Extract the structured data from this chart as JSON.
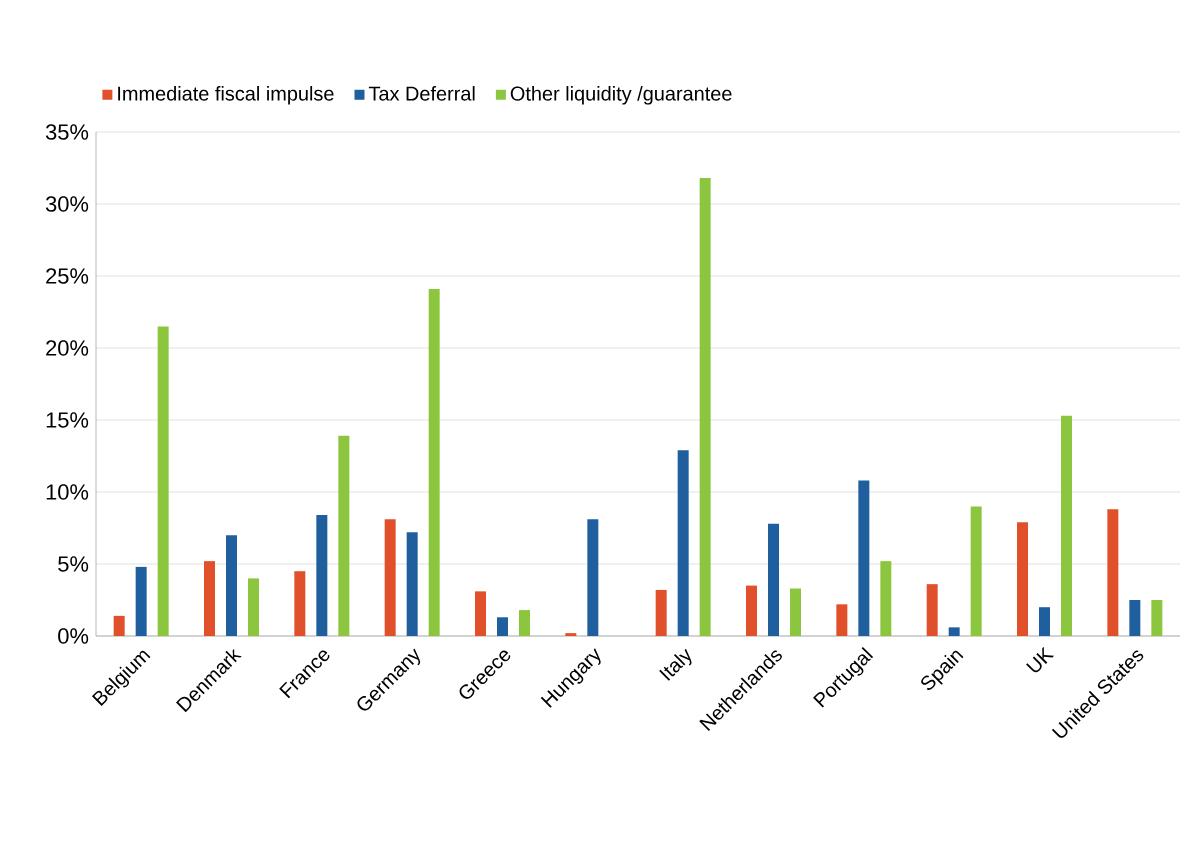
{
  "chart_data": {
    "type": "bar",
    "categories": [
      "Belgium",
      "Denmark",
      "France",
      "Germany",
      "Greece",
      "Hungary",
      "Italy",
      "Netherlands",
      "Portugal",
      "Spain",
      "UK",
      "United States"
    ],
    "series": [
      {
        "name": "Immediate fiscal impulse",
        "color": "#e0502a",
        "values": [
          1.4,
          5.2,
          4.5,
          8.1,
          3.1,
          0.2,
          3.2,
          3.5,
          2.2,
          3.6,
          7.9,
          8.8
        ]
      },
      {
        "name": "Tax Deferral",
        "color": "#1f5f9e",
        "values": [
          4.8,
          7.0,
          8.4,
          7.2,
          1.3,
          8.1,
          12.9,
          7.8,
          10.8,
          0.6,
          2.0,
          2.5
        ]
      },
      {
        "name": "Other liquidity /guarantee",
        "color": "#8cc63f",
        "values": [
          21.5,
          4.0,
          13.9,
          24.1,
          1.8,
          0,
          31.8,
          3.3,
          5.2,
          9.0,
          15.3,
          2.5
        ]
      }
    ],
    "ylim": [
      0,
      35
    ],
    "yticks": [
      {
        "value": 0,
        "label": "0%"
      },
      {
        "value": 5,
        "label": "5%"
      },
      {
        "value": 10,
        "label": "10%"
      },
      {
        "value": 15,
        "label": "15%"
      },
      {
        "value": 20,
        "label": "20%"
      },
      {
        "value": 25,
        "label": "25%"
      },
      {
        "value": 30,
        "label": "30%"
      },
      {
        "value": 35,
        "label": "35%"
      }
    ],
    "grid": "y",
    "legend": "top"
  }
}
